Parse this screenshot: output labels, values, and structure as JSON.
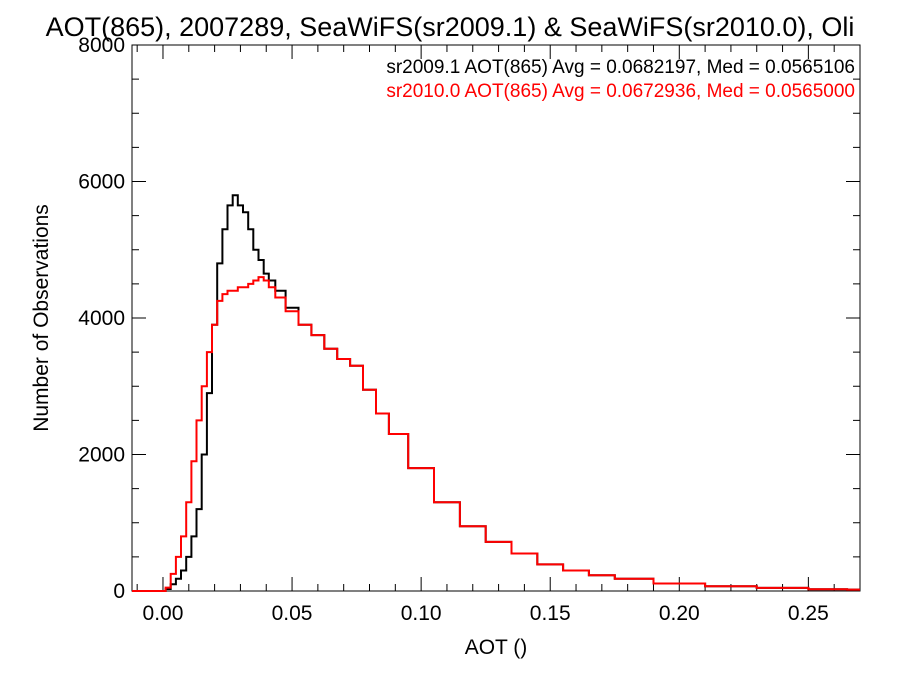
{
  "chart_data": {
    "type": "line",
    "title": "AOT(865), 2007289, SeaWiFS(sr2009.1) & SeaWiFS(sr2010.0), Oli",
    "xlabel": "AOT ()",
    "ylabel": "Number of Observations",
    "xlim": [
      -0.012,
      0.27
    ],
    "ylim": [
      0,
      8000
    ],
    "xticks": [
      0.0,
      0.05,
      0.1,
      0.15,
      0.2,
      0.25
    ],
    "xtick_labels": [
      "0.00",
      "0.05",
      "0.10",
      "0.15",
      "0.20",
      "0.25"
    ],
    "yticks": [
      0,
      2000,
      4000,
      6000,
      8000
    ],
    "ytick_labels": [
      "0",
      "2000",
      "4000",
      "6000",
      "8000"
    ],
    "grid": false,
    "legend_position": "top-right",
    "annotations": [
      {
        "text": "sr2009.1 AOT(865) Avg = 0.0682197, Med = 0.0565106",
        "color": "#000000"
      },
      {
        "text": "sr2010.0 AOT(865) Avg = 0.0672936, Med = 0.0565000",
        "color": "#ff0000"
      }
    ],
    "series": [
      {
        "color": "#000000",
        "x": [
          -0.012,
          0.0,
          0.002,
          0.004,
          0.006,
          0.008,
          0.01,
          0.012,
          0.014,
          0.016,
          0.018,
          0.02,
          0.022,
          0.024,
          0.026,
          0.028,
          0.03,
          0.032,
          0.034,
          0.036,
          0.038,
          0.04,
          0.042,
          0.045,
          0.05,
          0.055,
          0.06,
          0.065,
          0.07,
          0.075,
          0.08,
          0.085,
          0.09,
          0.1,
          0.11,
          0.12,
          0.13,
          0.14,
          0.15,
          0.16,
          0.17,
          0.18,
          0.2,
          0.22,
          0.24,
          0.26,
          0.27
        ],
        "y": [
          0,
          0,
          30,
          100,
          180,
          300,
          500,
          800,
          1200,
          2000,
          2900,
          3900,
          4800,
          5300,
          5650,
          5800,
          5650,
          5550,
          5300,
          5000,
          4850,
          4650,
          4550,
          4400,
          4150,
          3900,
          3750,
          3550,
          3400,
          3300,
          2950,
          2600,
          2300,
          1800,
          1300,
          950,
          720,
          550,
          390,
          300,
          230,
          180,
          110,
          70,
          45,
          25,
          20
        ]
      },
      {
        "color": "#ff0000",
        "x": [
          -0.012,
          0.0,
          0.002,
          0.004,
          0.006,
          0.008,
          0.01,
          0.012,
          0.014,
          0.016,
          0.018,
          0.02,
          0.022,
          0.024,
          0.026,
          0.028,
          0.03,
          0.032,
          0.034,
          0.036,
          0.038,
          0.04,
          0.042,
          0.045,
          0.05,
          0.055,
          0.06,
          0.065,
          0.07,
          0.075,
          0.08,
          0.085,
          0.09,
          0.1,
          0.11,
          0.12,
          0.13,
          0.14,
          0.15,
          0.16,
          0.17,
          0.18,
          0.2,
          0.22,
          0.24,
          0.26,
          0.27
        ],
        "y": [
          0,
          0,
          50,
          250,
          500,
          800,
          1300,
          1900,
          2500,
          3000,
          3500,
          3900,
          4250,
          4350,
          4400,
          4400,
          4450,
          4450,
          4500,
          4550,
          4600,
          4550,
          4450,
          4300,
          4100,
          3900,
          3750,
          3550,
          3400,
          3300,
          2950,
          2600,
          2300,
          1800,
          1300,
          950,
          720,
          550,
          390,
          300,
          230,
          180,
          110,
          70,
          45,
          25,
          20
        ]
      }
    ]
  }
}
